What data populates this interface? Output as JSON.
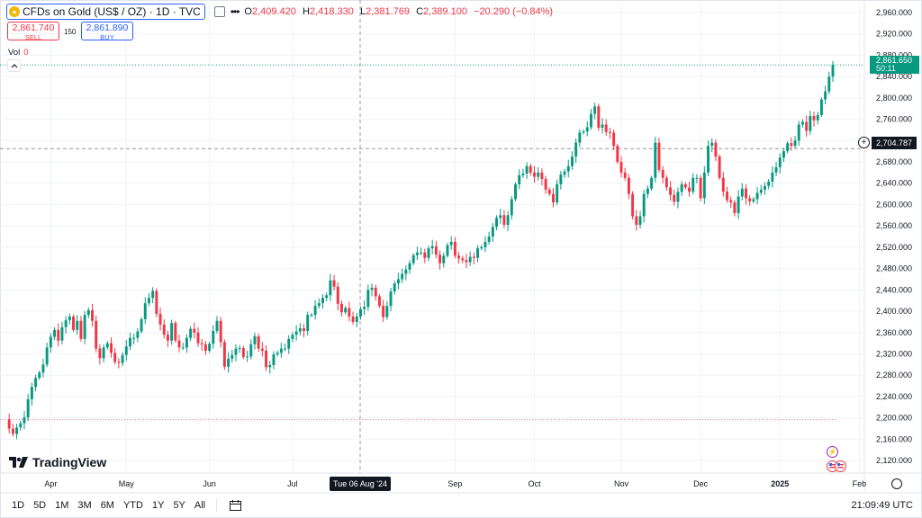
{
  "header": {
    "symbol_title": "CFDs on Gold (US$ / OZ) · 1D · TVC",
    "ohlc": {
      "o_label": "O",
      "o": "2,409.420",
      "h_label": "H",
      "h": "2,418.330",
      "l_label": "L",
      "l": "2,381.769",
      "c_label": "C",
      "c": "2,389.100",
      "change": "−20.290 (−0.84%)"
    },
    "sell": {
      "price": "2,861.740",
      "label": "SELL"
    },
    "buy": {
      "price": "2,861.890",
      "label": "BUY"
    },
    "spread": "150",
    "vol_label": "Vol",
    "vol_value": "0"
  },
  "logo_text": "TradingView",
  "markers": {
    "cursor_date": "Tue 06 Aug '24",
    "last_price": "2,861.650",
    "countdown": "50:11",
    "crosshair_price": "2,704.787"
  },
  "toolbar": {
    "ranges": [
      "1D",
      "5D",
      "1M",
      "3M",
      "6M",
      "YTD",
      "1Y",
      "5Y",
      "All"
    ],
    "clock": "21:09:49 UTC"
  },
  "colors": {
    "up": "#089981",
    "down": "#f23645",
    "accent": "#2962ff",
    "grid": "#f0f3fa"
  },
  "chart_data": {
    "type": "candlestick",
    "ylim": [
      2100,
      2970
    ],
    "y_ticks": [
      "2,960.000",
      "2,920.000",
      "2,880.000",
      "2,840.000",
      "2,800.000",
      "2,760.000",
      "2,720.000",
      "2,680.000",
      "2,640.000",
      "2,600.000",
      "2,560.000",
      "2,520.000",
      "2,480.000",
      "2,440.000",
      "2,400.000",
      "2,360.000",
      "2,320.000",
      "2,280.000",
      "2,240.000",
      "2,200.000",
      "2,160.000",
      "2,120.000"
    ],
    "x_ticks": [
      "Apr",
      "May",
      "Jun",
      "Jul",
      "Sep",
      "Oct",
      "Nov",
      "Dec",
      "2025",
      "Feb"
    ],
    "closes": [
      2197,
      2180,
      2170,
      2182,
      2190,
      2201,
      2235,
      2258,
      2275,
      2285,
      2300,
      2332,
      2352,
      2365,
      2345,
      2370,
      2383,
      2390,
      2365,
      2382,
      2348,
      2393,
      2402,
      2382,
      2330,
      2312,
      2332,
      2340,
      2322,
      2305,
      2303,
      2318,
      2334,
      2350,
      2350,
      2362,
      2385,
      2415,
      2425,
      2438,
      2395,
      2375,
      2356,
      2345,
      2378,
      2345,
      2332,
      2332,
      2350,
      2367,
      2360,
      2340,
      2338,
      2326,
      2339,
      2363,
      2382,
      2342,
      2296,
      2311,
      2318,
      2330,
      2331,
      2314,
      2315,
      2338,
      2353,
      2330,
      2326,
      2295,
      2299,
      2319,
      2322,
      2330,
      2330,
      2348,
      2356,
      2362,
      2368,
      2363,
      2393,
      2393,
      2410,
      2415,
      2425,
      2430,
      2458,
      2446,
      2414,
      2398,
      2406,
      2390,
      2380,
      2390,
      2404,
      2408,
      2440,
      2444,
      2428,
      2410,
      2389,
      2410,
      2437,
      2452,
      2460,
      2470,
      2478,
      2490,
      2505,
      2510,
      2510,
      2500,
      2518,
      2522,
      2506,
      2490,
      2504,
      2524,
      2530,
      2504,
      2499,
      2496,
      2492,
      2502,
      2500,
      2518,
      2520,
      2530,
      2540,
      2558,
      2575,
      2580,
      2562,
      2580,
      2610,
      2638,
      2655,
      2658,
      2672,
      2660,
      2652,
      2660,
      2648,
      2628,
      2620,
      2604,
      2638,
      2656,
      2662,
      2672,
      2690,
      2716,
      2735,
      2737,
      2745,
      2770,
      2784,
      2744,
      2750,
      2736,
      2735,
      2710,
      2680,
      2660,
      2650,
      2620,
      2578,
      2562,
      2578,
      2620,
      2630,
      2650,
      2716,
      2665,
      2650,
      2632,
      2618,
      2605,
      2624,
      2638,
      2632,
      2624,
      2650,
      2650,
      2612,
      2660,
      2710,
      2716,
      2690,
      2650,
      2624,
      2608,
      2604,
      2584,
      2615,
      2630,
      2612,
      2606,
      2610,
      2622,
      2628,
      2635,
      2643,
      2660,
      2670,
      2688,
      2700,
      2715,
      2710,
      2720,
      2750,
      2755,
      2738,
      2766,
      2758,
      2768,
      2797,
      2812,
      2840,
      2862
    ],
    "series": [
      {
        "name": "CFDs on Gold (US$ / OZ)",
        "last": 2861.65
      }
    ]
  }
}
